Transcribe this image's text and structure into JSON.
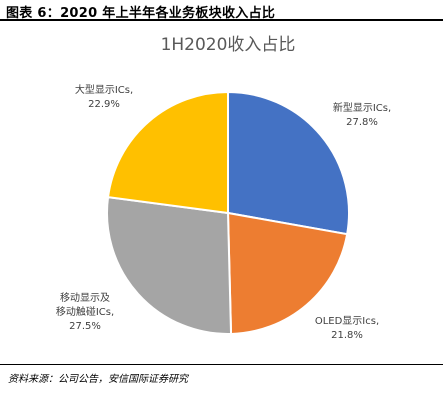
{
  "figure_title": "图表 6：2020 年上半年各业务板块收入占比",
  "source": "资料来源：公司公告，安信国际证券研究",
  "chart_data": {
    "type": "pie",
    "title": "1H2020收入占比",
    "slices": [
      {
        "name": "新型显示ICs",
        "percent_label": "27.8%",
        "value": 27.8,
        "color": "#4472C4"
      },
      {
        "name": "OLED显示Ics",
        "percent_label": "21.8%",
        "value": 21.8,
        "color": "#ED7D31"
      },
      {
        "name": "移动显示及移动触碰ICs",
        "label_lines": [
          "移动显示及",
          "移动触碰ICs,"
        ],
        "percent_label": "27.5%",
        "value": 27.5,
        "color": "#A5A5A5"
      },
      {
        "name": "大型显示ICs",
        "percent_label": "22.9%",
        "value": 22.9,
        "color": "#FFC000"
      }
    ]
  }
}
